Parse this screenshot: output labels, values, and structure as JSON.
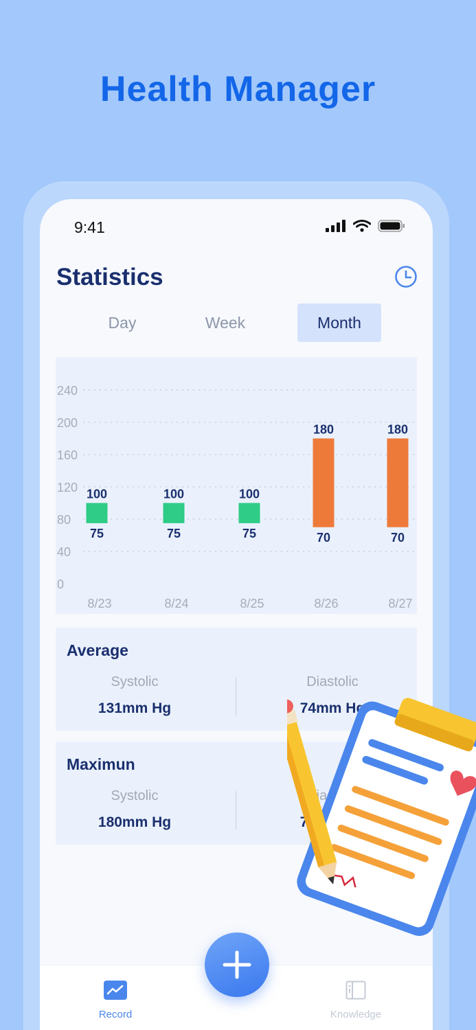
{
  "headline": "Health Manager",
  "status_bar": {
    "time": "9:41"
  },
  "header": {
    "title": "Statistics"
  },
  "tabs": [
    {
      "label": "Day",
      "active": false
    },
    {
      "label": "Week",
      "active": false
    },
    {
      "label": "Month",
      "active": true
    }
  ],
  "chart_data": {
    "type": "bar",
    "categories": [
      "8/23",
      "8/24",
      "8/25",
      "8/26",
      "8/27"
    ],
    "series": [
      {
        "values_low": [
          75,
          75,
          75,
          70,
          70
        ],
        "values_high": [
          100,
          100,
          100,
          180,
          180
        ]
      }
    ],
    "colors": [
      "#2ecc86",
      "#2ecc86",
      "#2ecc86",
      "#ee7a3a",
      "#ee7a3a"
    ],
    "y_ticks": [
      0,
      40,
      80,
      120,
      160,
      200,
      240
    ],
    "ylim": [
      0,
      240
    ],
    "grid": true
  },
  "average": {
    "title": "Average",
    "systolic_label": "Systolic",
    "systolic_value": "131mm Hg",
    "diastolic_label": "Diastolic",
    "diastolic_value": "74mm Hg"
  },
  "maximum": {
    "title": "Maximun",
    "systolic_label": "Systolic",
    "systolic_value": "180mm Hg",
    "diastolic_label": "Diastolic",
    "diastolic_value": "75mm Hg"
  },
  "bottom_nav": {
    "record_label": "Record",
    "knowledge_label": "Knowledge",
    "record_color": "#4a86ec",
    "knowledge_color": "#c4cad4"
  }
}
